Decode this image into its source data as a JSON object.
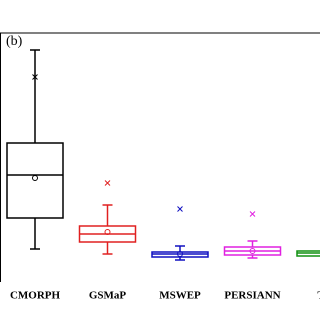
{
  "chart_data": {
    "type": "box",
    "panel_label": "(b)",
    "categories": [
      "CMORPH",
      "GSMaP",
      "MSWEP",
      "PERSIANN",
      "TR"
    ],
    "colors": [
      "#000000",
      "#e02020",
      "#1010c0",
      "#e020e0",
      "#109010"
    ],
    "whisker_high": [
      92,
      30,
      13.6,
      15.6,
      null
    ],
    "q3": [
      54.8,
      21.6,
      11.2,
      13.2,
      11.6
    ],
    "median": [
      42,
      18.4,
      10.4,
      11.6,
      10.8
    ],
    "mean": [
      40.8,
      19.2,
      10.4,
      11.6,
      null
    ],
    "q1": [
      24.8,
      15.2,
      9.2,
      10,
      9.6
    ],
    "whisker_low": [
      12.4,
      10.4,
      8,
      8.8,
      null
    ],
    "outlier": [
      81.2,
      38.8,
      28.4,
      26.4,
      null
    ],
    "ylim": [
      0,
      100
    ]
  }
}
